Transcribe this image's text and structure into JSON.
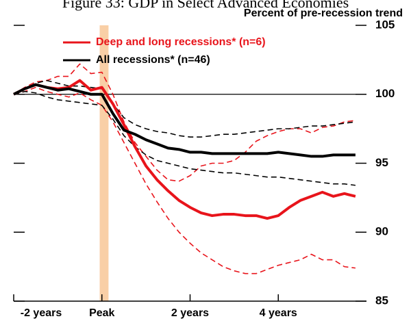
{
  "chart_data": {
    "type": "line",
    "title": "Figure 33: GDP in Select Advanced Economies",
    "subtitle": "Percent of pre-recession trend",
    "x": [
      -8,
      -7,
      -6,
      -5,
      -4,
      -3,
      -2,
      -1,
      0,
      1,
      2,
      3,
      4,
      5,
      6,
      7,
      8,
      9,
      10,
      11,
      12,
      13,
      14,
      15,
      16,
      17,
      18,
      19,
      20,
      21,
      22,
      23
    ],
    "series": [
      {
        "color": "#e8141b",
        "dash": true,
        "values": [
          100,
          100.5,
          100.9,
          101.0,
          101.3,
          101.3,
          102.2,
          101.5,
          101.6,
          100.0,
          98.0,
          96.5,
          95.5,
          94.5,
          93.8,
          93.7,
          94.1,
          94.8,
          95.0,
          95.0,
          95.2,
          95.8,
          96.6,
          97.0,
          97.3,
          97.5,
          97.5,
          97.2,
          97.6,
          97.7,
          98.0,
          98.1
        ]
      },
      {
        "color": "#e8141b",
        "dash": true,
        "values": [
          100,
          100.2,
          100.5,
          100.2,
          100.0,
          99.8,
          100.1,
          99.6,
          99.2,
          98.0,
          96.5,
          95.0,
          93.5,
          92.2,
          91.0,
          90.0,
          89.2,
          88.5,
          88.0,
          87.5,
          87.2,
          87.0,
          87.0,
          87.3,
          87.6,
          87.8,
          88.0,
          88.4,
          88.0,
          88.0,
          87.5,
          87.4
        ]
      },
      {
        "color": "#000000",
        "dash": true,
        "values": [
          100,
          100.4,
          100.8,
          101.0,
          100.8,
          100.6,
          100.6,
          100.5,
          100.4,
          99.3,
          98.3,
          97.8,
          97.5,
          97.3,
          97.2,
          97.0,
          96.9,
          96.9,
          97.0,
          97.1,
          97.1,
          97.2,
          97.3,
          97.4,
          97.5,
          97.5,
          97.6,
          97.7,
          97.7,
          97.8,
          97.9,
          98.0
        ]
      },
      {
        "color": "#000000",
        "dash": true,
        "values": [
          100,
          100.2,
          100.1,
          99.8,
          99.6,
          99.5,
          99.4,
          99.3,
          99.2,
          98.2,
          97.0,
          96.2,
          95.6,
          95.2,
          95.0,
          94.8,
          94.6,
          94.5,
          94.4,
          94.3,
          94.3,
          94.2,
          94.1,
          94.0,
          94.0,
          93.9,
          93.8,
          93.7,
          93.6,
          93.5,
          93.5,
          93.4
        ]
      },
      {
        "name": "Deep and long recessions* (n=6)",
        "color": "#e8141b",
        "values": [
          100,
          100.4,
          100.7,
          100.5,
          100.4,
          100.5,
          101.0,
          100.3,
          100.5,
          99.3,
          97.8,
          96.2,
          94.8,
          93.8,
          93.0,
          92.3,
          91.8,
          91.4,
          91.2,
          91.3,
          91.3,
          91.2,
          91.2,
          91.0,
          91.2,
          91.8,
          92.3,
          92.6,
          92.9,
          92.6,
          92.8,
          92.6
        ]
      },
      {
        "name": "All recessions* (n=46)",
        "color": "#000000",
        "values": [
          100,
          100.4,
          100.7,
          100.5,
          100.3,
          100.4,
          100.2,
          100.0,
          100.0,
          98.6,
          97.4,
          97.1,
          96.7,
          96.4,
          96.1,
          96.0,
          95.8,
          95.8,
          95.7,
          95.7,
          95.7,
          95.7,
          95.7,
          95.7,
          95.8,
          95.7,
          95.6,
          95.5,
          95.5,
          95.6,
          95.6,
          95.6
        ]
      }
    ],
    "xlim": [
      -8,
      24
    ],
    "xticks": [
      {
        "value": -8,
        "label": "-2 years"
      },
      {
        "value": 0,
        "label": "Peak"
      },
      {
        "value": 8,
        "label": "2 years"
      },
      {
        "value": 16,
        "label": "4 years"
      }
    ],
    "ylim": [
      85,
      105
    ],
    "yticks": [
      85,
      90,
      95,
      100,
      105
    ],
    "reference_line": 100,
    "highlight_x": [
      -0.2,
      0.6
    ],
    "highlight_color": "#f9cfa6",
    "legend": "top-left"
  }
}
